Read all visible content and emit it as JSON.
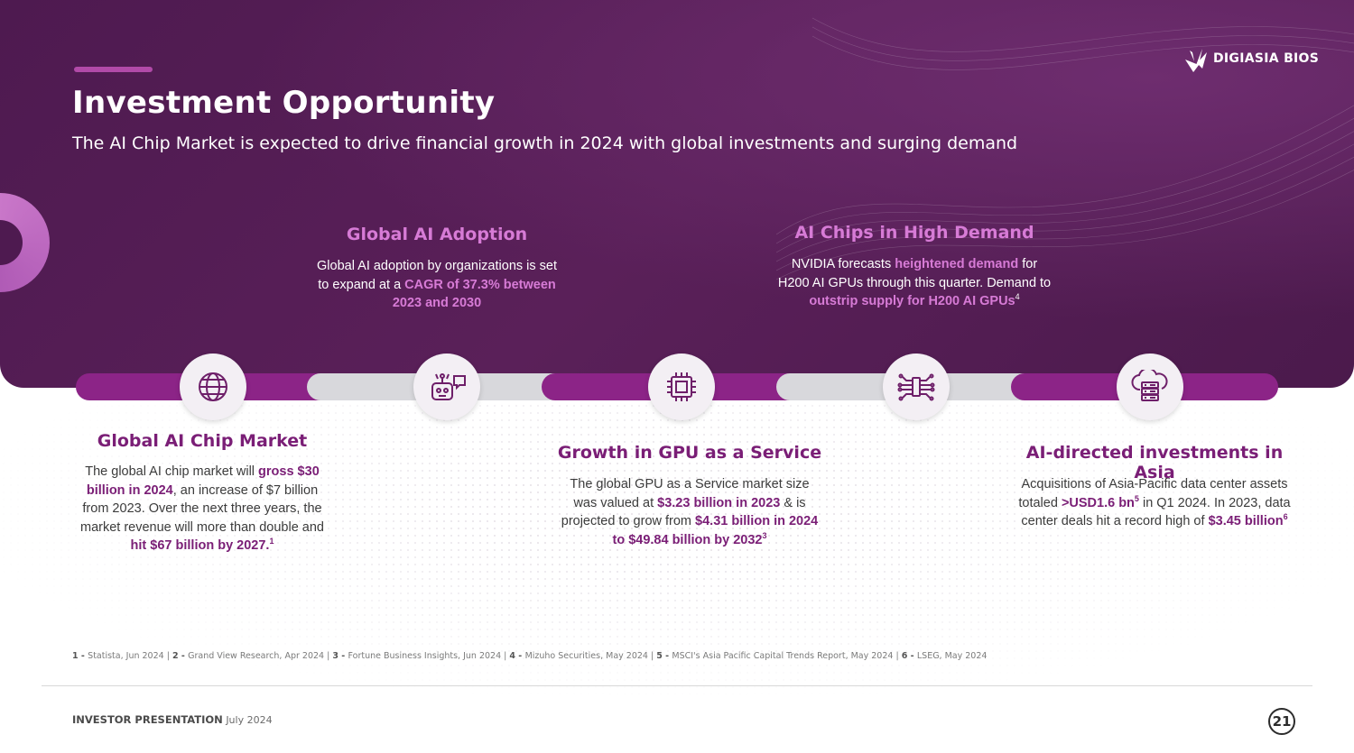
{
  "brand": {
    "logo_text": "DIGIASIA BIOS"
  },
  "header": {
    "title": "Investment Opportunity",
    "subtitle": "The AI Chip Market is expected to drive financial growth in 2024 with global investments and surging demand"
  },
  "cards_top": [
    {
      "title": "Global AI Adoption",
      "body": [
        {
          "t": "Global AI adoption by organizations is set to expand at a "
        },
        {
          "t": "CAGR of 37.3% between 2023 and 2030",
          "hl": true
        }
      ]
    },
    {
      "title": "AI Chips in High Demand",
      "body": [
        {
          "t": "NVIDIA forecasts "
        },
        {
          "t": "heightened demand",
          "hl": true
        },
        {
          "t": " for H200 AI GPUs through this quarter. Demand to "
        },
        {
          "t": "outstrip supply for H200 AI GPUs",
          "hl": true
        },
        {
          "t": "4",
          "sup": true
        }
      ]
    }
  ],
  "cards_bottom": [
    {
      "title": "Global AI Chip Market",
      "body": [
        {
          "t": "The global AI chip market will "
        },
        {
          "t": "gross $30 billion in 2024",
          "hl": true
        },
        {
          "t": ", an increase of $7 billion from 2023. Over the next three years, the market revenue will more than double and "
        },
        {
          "t": "hit $67 billion by 2027.",
          "hl": true
        },
        {
          "t": "1",
          "sup": true,
          "hl": true
        }
      ]
    },
    {
      "title": "Growth in GPU as a Service",
      "body": [
        {
          "t": "The global GPU as a Service market size was valued at "
        },
        {
          "t": "$3.23 billion in 2023",
          "hl": true
        },
        {
          "t": " & is projected to grow from "
        },
        {
          "t": "$4.31 billion in 2024 to $49.84 billion by 2032",
          "hl": true
        },
        {
          "t": "3",
          "sup": true,
          "hl": true
        }
      ]
    },
    {
      "title": "AI-directed investments in Asia",
      "body": [
        {
          "t": "Acquisitions of Asia-Pacific data center assets totaled "
        },
        {
          "t": ">USD1.6 bn",
          "hl": true
        },
        {
          "t": "5",
          "sup": true,
          "hl": true
        },
        {
          "t": " in Q1 2024. In 2023, data center deals hit a record high of "
        },
        {
          "t": "$3.45 billion",
          "hl": true
        },
        {
          "t": "6",
          "sup": true,
          "hl": true
        }
      ]
    }
  ],
  "timeline_icons": [
    "globe-icon",
    "robot-chat-icon",
    "chip-icon",
    "circuit-icon",
    "cloud-server-icon"
  ],
  "footnotes": [
    {
      "num": "1 -",
      "text": "Statista, Jun 2024"
    },
    {
      "num": "2 -",
      "text": "Grand View Research, Apr 2024"
    },
    {
      "num": "3 -",
      "text": "Fortune Business Insights, Jun 2024"
    },
    {
      "num": "4 -",
      "text": "Mizuho Securities, May 2024"
    },
    {
      "num": "5 -",
      "text": "MSCI's Asia Pacific Capital Trends Report, May 2024"
    },
    {
      "num": "6 -",
      "text": "LSEG, May 2024"
    }
  ],
  "footer": {
    "label": "INVESTOR PRESENTATION",
    "date": "July 2024",
    "page": "21"
  },
  "colors": {
    "hero": "#4e1a50",
    "accent": "#b14aa8",
    "highlight_dark": "#7a1e76",
    "highlight_light": "#d77bd6",
    "track_gray": "#d8d8dc"
  }
}
